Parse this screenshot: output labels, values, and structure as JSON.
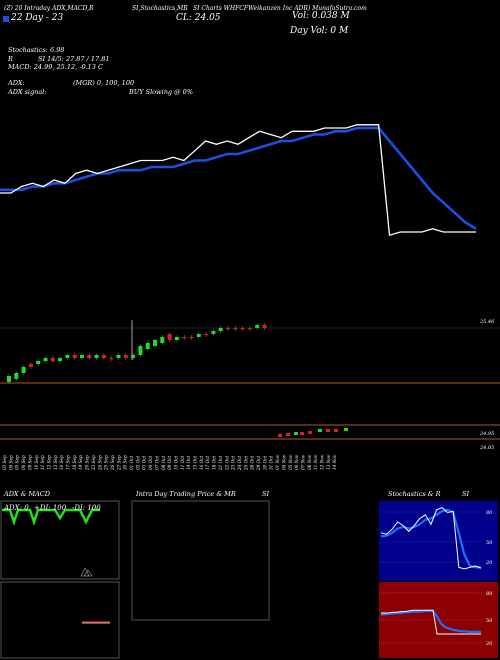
{
  "header": {
    "line1_left": "(Z) 20 Intraday ADX,MACD,R",
    "line1_mid": "SI,Stochastics,MR",
    "line1_mid2": "SI Charts WHFCF",
    "line1_right": "Weikanzen  Inc ADR) MunafaSutra.com",
    "line2_left": "22 Day - 23",
    "close_label": "CL: 24.05",
    "vol": "Vol: 0.038  M",
    "day_vol": "Day Vol: 0   M"
  },
  "indicators": {
    "stochastics": "Stochastics: 6.98",
    "rsi": "SI 14/5: 27.87 / 17.81",
    "rsi_prefix": "R",
    "macd": "MACD: 24.99, 25.12, -0.13 C",
    "adx": "ADX:",
    "mgr": "(MGR) 0,  100,  100",
    "adx_signal": "ADX  signal:",
    "buy_slowing": "BUY Slowing @ 0%"
  },
  "colors": {
    "price": "#ffffff",
    "ma": "#1a4fe0",
    "up": "#1ee01e",
    "down": "#e01e1e",
    "divider": "#b85a1a",
    "stoch_bg": "#00008b",
    "rsi_bg": "#8b0000"
  },
  "chart_data": [
    {
      "type": "line",
      "series": [
        {
          "values": [
            22.9,
            22.9,
            23.1,
            23.2,
            23.1,
            23.3,
            23.2,
            23.5,
            23.6,
            23.5,
            23.6,
            23.7,
            23.8,
            23.9,
            23.9,
            23.9,
            24.0,
            23.9,
            24.2,
            24.5,
            24.4,
            24.5,
            24.4,
            24.6,
            24.8,
            24.7,
            24.6,
            24.8,
            24.8,
            24.8,
            24.9,
            24.9,
            24.9,
            25.0,
            25.0,
            25.0,
            21.6,
            21.7,
            21.7,
            21.7,
            21.8,
            21.7,
            21.7,
            21.7,
            21.7
          ]
        },
        {
          "values": [
            23.0,
            23.0,
            23.0,
            23.1,
            23.1,
            23.2,
            23.2,
            23.3,
            23.4,
            23.5,
            23.5,
            23.6,
            23.6,
            23.6,
            23.7,
            23.7,
            23.7,
            23.8,
            23.9,
            23.9,
            24.0,
            24.1,
            24.1,
            24.2,
            24.3,
            24.4,
            24.5,
            24.5,
            24.6,
            24.7,
            24.7,
            24.8,
            24.8,
            24.9,
            24.9,
            24.9,
            24.5,
            24.1,
            23.7,
            23.3,
            22.9,
            22.6,
            22.3,
            22.0,
            21.8
          ]
        }
      ]
    },
    {
      "type": "bar",
      "categories": [
        "03 Sep",
        "04 Sep",
        "05 Sep",
        "06 Sep",
        "09 Sep",
        "10 Sep",
        "11 Sep",
        "12 Sep",
        "13 Sep",
        "16 Sep",
        "17 Sep",
        "18 Sep",
        "19 Sep",
        "20 Sep",
        "23 Sep",
        "24 Sep",
        "25 Sep",
        "26 Sep",
        "27 Sep",
        "30 Sep",
        "01 Oct",
        "02 Oct",
        "03 Oct",
        "04 Oct",
        "07 Oct",
        "08 Oct",
        "09 Oct",
        "10 Oct",
        "11 Oct",
        "14 Oct",
        "15 Oct",
        "16 Oct",
        "17 Oct",
        "18 Oct",
        "21 Oct",
        "22 Oct",
        "23 Oct",
        "24 Oct",
        "25 Oct",
        "28 Oct",
        "29 Oct",
        "30 Oct",
        "31 Oct",
        "01 Nov",
        "04 Nov",
        "05 Nov",
        "06 Nov",
        "07 Nov",
        "08 Nov",
        "11 Nov",
        "12 Nov",
        "13 Nov",
        "14 Nov"
      ],
      "price_labels": [
        "25.46",
        "24.95",
        "24.05"
      ],
      "candles": [
        {
          "o": 23.2,
          "c": 23.4,
          "up": true
        },
        {
          "o": 23.3,
          "c": 23.5,
          "up": true
        },
        {
          "o": 23.5,
          "c": 23.7,
          "up": true
        },
        {
          "o": 23.8,
          "c": 23.7,
          "up": false
        },
        {
          "o": 23.8,
          "c": 23.9,
          "up": true
        },
        {
          "o": 23.9,
          "c": 24.0,
          "up": true
        },
        {
          "o": 24.0,
          "c": 23.9,
          "up": false
        },
        {
          "o": 23.9,
          "c": 24.0,
          "up": true
        },
        {
          "o": 24.0,
          "c": 24.1,
          "up": true
        },
        {
          "o": 24.1,
          "c": 24.0,
          "up": false
        },
        {
          "o": 24.0,
          "c": 24.1,
          "up": true
        },
        {
          "o": 24.1,
          "c": 24.0,
          "up": false
        },
        {
          "o": 24.0,
          "c": 24.1,
          "up": true
        },
        {
          "o": 24.1,
          "c": 24.0,
          "up": false
        },
        {
          "o": 24.0,
          "c": 24.0,
          "up": false
        },
        {
          "o": 24.0,
          "c": 24.1,
          "up": true
        },
        {
          "o": 24.1,
          "c": 24.0,
          "up": false
        },
        {
          "o": 24.0,
          "c": 24.1,
          "up": true
        },
        {
          "o": 24.1,
          "c": 24.4,
          "up": true
        },
        {
          "o": 24.3,
          "c": 24.5,
          "up": true
        },
        {
          "o": 24.4,
          "c": 24.6,
          "up": true
        },
        {
          "o": 24.5,
          "c": 24.7,
          "up": true
        },
        {
          "o": 24.8,
          "c": 24.6,
          "up": false
        },
        {
          "o": 24.6,
          "c": 24.7,
          "up": true
        },
        {
          "o": 24.7,
          "c": 24.7,
          "up": false
        },
        {
          "o": 24.7,
          "c": 24.7,
          "up": false
        },
        {
          "o": 24.7,
          "c": 24.8,
          "up": true
        },
        {
          "o": 24.8,
          "c": 24.8,
          "up": false
        },
        {
          "o": 24.8,
          "c": 24.9,
          "up": true
        },
        {
          "o": 24.9,
          "c": 25.0,
          "up": true
        },
        {
          "o": 25.0,
          "c": 25.0,
          "up": false
        },
        {
          "o": 25.0,
          "c": 25.0,
          "up": false
        },
        {
          "o": 25.0,
          "c": 25.0,
          "up": false
        },
        {
          "o": 25.0,
          "c": 25.0,
          "up": false
        },
        {
          "o": 25.0,
          "c": 25.1,
          "up": true
        },
        {
          "o": 25.1,
          "c": 25.0,
          "up": false
        }
      ]
    },
    {
      "type": "line",
      "title": "ADX  & MACD",
      "labels": [
        "ADX: 0",
        "+DI: 100",
        "-DI: 100"
      ]
    },
    {
      "type": "line",
      "title": "Intra Day Trading Price  & MR",
      "title_right": "SI"
    },
    {
      "type": "line",
      "title": "Stochastics & R",
      "title_right": "SI",
      "stoch_ticks": [
        "80",
        "50",
        "20"
      ],
      "rsi_ticks": [
        "80",
        "50",
        "20"
      ],
      "stoch_series": [
        {
          "values": [
            60,
            58,
            65,
            75,
            70,
            62,
            70,
            80,
            85,
            72,
            92,
            95,
            88,
            90,
            12,
            10,
            12,
            14,
            11
          ]
        },
        {
          "values": [
            55,
            56,
            60,
            66,
            68,
            66,
            68,
            72,
            78,
            80,
            85,
            90,
            92,
            88,
            60,
            30,
            14,
            12,
            12
          ]
        }
      ],
      "rsi_series": [
        {
          "values": [
            60,
            60,
            60,
            61,
            61,
            62,
            62,
            63,
            64,
            64,
            64,
            64,
            64,
            64,
            30,
            30,
            30,
            30,
            30,
            30,
            30,
            30,
            30,
            30,
            30,
            30
          ]
        },
        {
          "values": [
            58,
            58,
            59,
            59,
            60,
            60,
            61,
            61,
            62,
            62,
            62,
            63,
            63,
            63,
            55,
            45,
            40,
            38,
            36,
            35,
            34,
            34,
            33,
            33,
            33,
            33
          ]
        }
      ]
    }
  ]
}
